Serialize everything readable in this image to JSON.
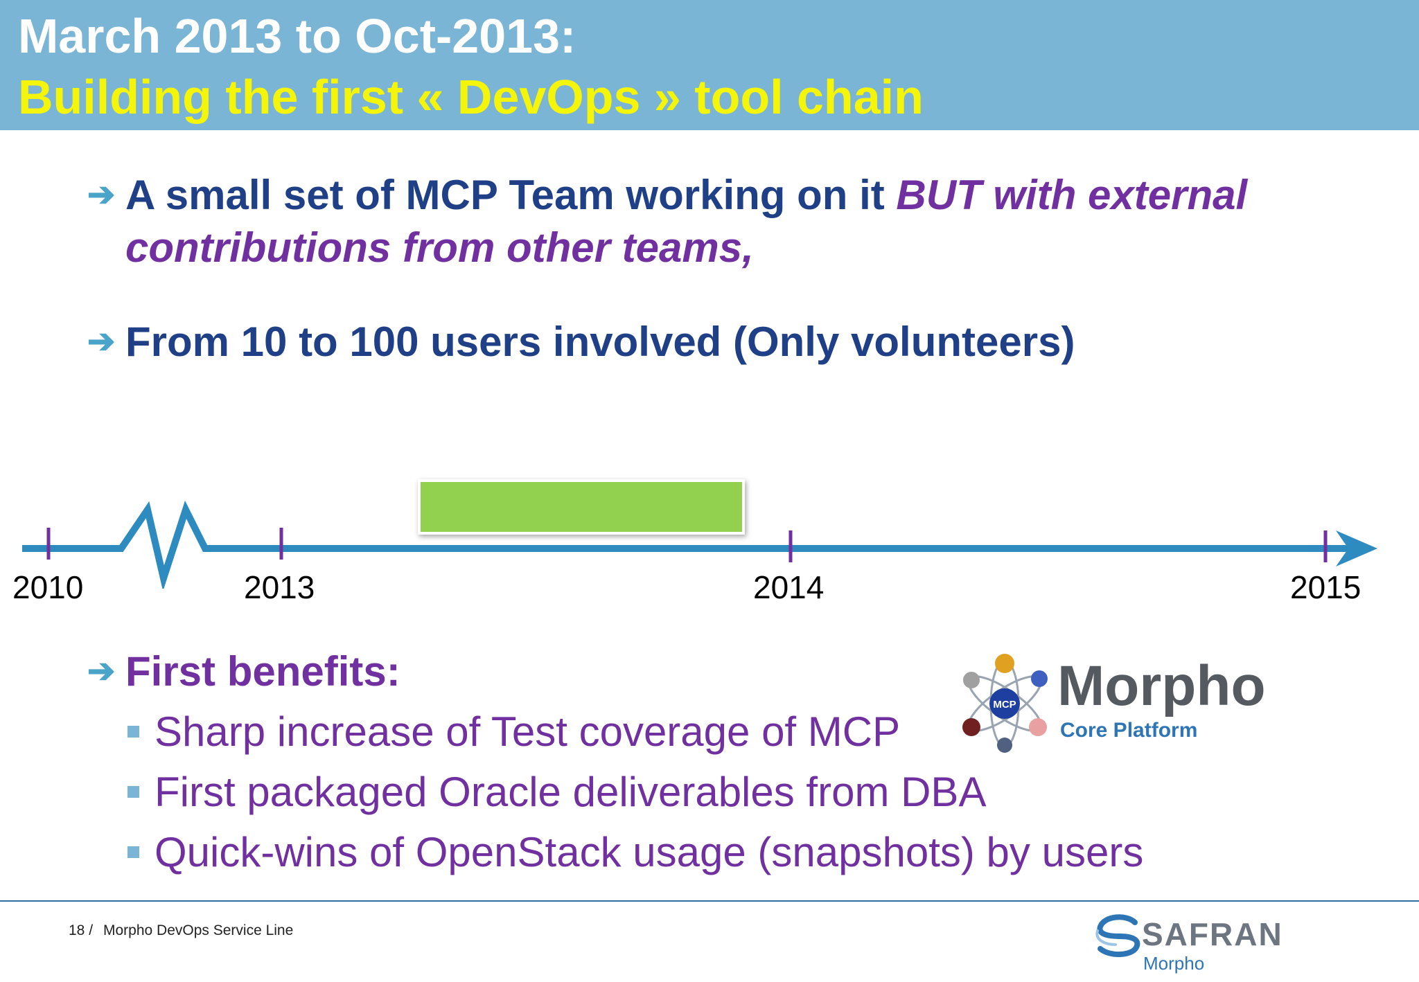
{
  "header": {
    "title_line1": "March 2013 to Oct-2013:",
    "title_line2": "Building the first « DevOps » tool chain"
  },
  "bullets": [
    {
      "arrow": "➔",
      "text_plain": "A small set of MCP Team working on it ",
      "text_emphasis": "BUT with external contributions from other teams,"
    },
    {
      "arrow": "➔",
      "text_plain": "From 10 to 100 users involved (Only volunteers)"
    },
    {
      "arrow": "➔",
      "text_plain": "First benefits:"
    }
  ],
  "timeline": {
    "years": [
      "2010",
      "2013",
      "2014",
      "2015"
    ],
    "highlight_color": "#92d050",
    "axis_color": "#2e8bc0",
    "tick_color": "#7030a0"
  },
  "benefits": [
    "Sharp increase of Test coverage of MCP",
    "First packaged Oracle deliverables from DBA",
    "Quick-wins of OpenStack usage (snapshots) by users"
  ],
  "logo_mcp": {
    "badge": "MCP",
    "name": "Morpho",
    "subtitle": "Core Platform"
  },
  "footer": {
    "page_number": "18 /",
    "text": "Morpho DevOps Service Line",
    "company": "SAFRAN",
    "company_sub": "Morpho"
  },
  "colors": {
    "header_bg": "#7ab5d6",
    "title_white": "#ffffff",
    "title_yellow": "#f5f50a",
    "navy": "#1f3f86",
    "purple": "#7030a0"
  }
}
